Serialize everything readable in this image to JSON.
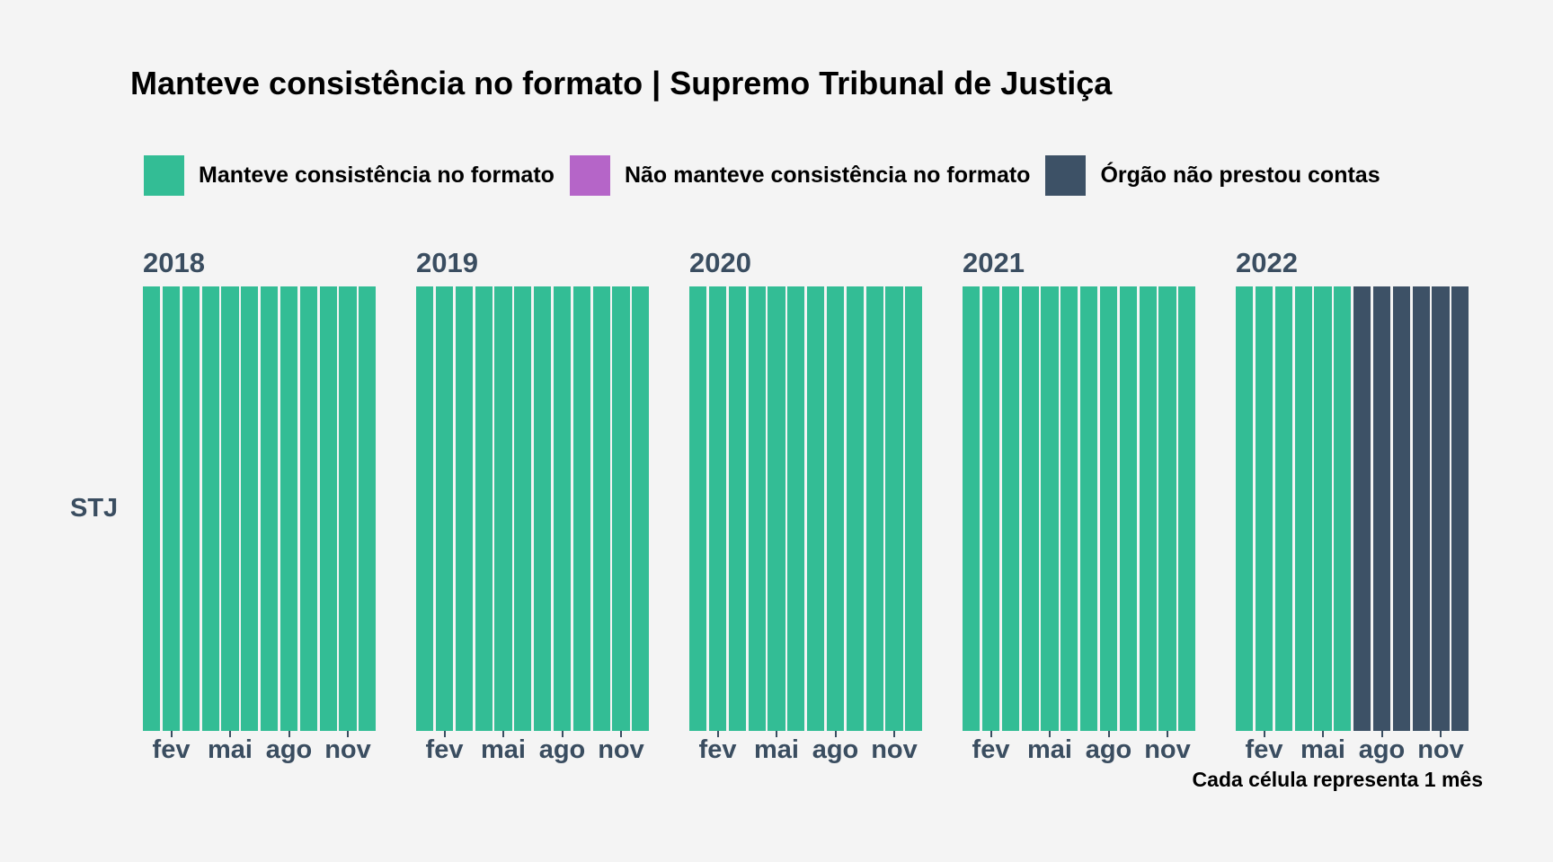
{
  "title": "Manteve consistência no formato | Supremo Tribunal de Justiça",
  "legend": [
    {
      "label": "Manteve consistência no formato",
      "color": "#33bd95"
    },
    {
      "label": "Não manteve consistência no formato",
      "color": "#b565c8"
    },
    {
      "label": "Órgão não prestou contas",
      "color": "#3d5166"
    }
  ],
  "caption": "Cada célula representa 1 mês",
  "chart_data": {
    "type": "heatmap",
    "title": "Manteve consistência no formato | Supremo Tribunal de Justiça",
    "row_label": "STJ",
    "x_tick_labels": [
      "fev",
      "mai",
      "ago",
      "nov"
    ],
    "x_tick_months": [
      2,
      5,
      8,
      11
    ],
    "categories": [
      "Manteve consistência no formato",
      "Não manteve consistência no formato",
      "Órgão não prestou contas"
    ],
    "panels": [
      {
        "year": "2018",
        "months": [
          "Manteve consistência no formato",
          "Manteve consistência no formato",
          "Manteve consistência no formato",
          "Manteve consistência no formato",
          "Manteve consistência no formato",
          "Manteve consistência no formato",
          "Manteve consistência no formato",
          "Manteve consistência no formato",
          "Manteve consistência no formato",
          "Manteve consistência no formato",
          "Manteve consistência no formato",
          "Manteve consistência no formato"
        ]
      },
      {
        "year": "2019",
        "months": [
          "Manteve consistência no formato",
          "Manteve consistência no formato",
          "Manteve consistência no formato",
          "Manteve consistência no formato",
          "Manteve consistência no formato",
          "Manteve consistência no formato",
          "Manteve consistência no formato",
          "Manteve consistência no formato",
          "Manteve consistência no formato",
          "Manteve consistência no formato",
          "Manteve consistência no formato",
          "Manteve consistência no formato"
        ]
      },
      {
        "year": "2020",
        "months": [
          "Manteve consistência no formato",
          "Manteve consistência no formato",
          "Manteve consistência no formato",
          "Manteve consistência no formato",
          "Manteve consistência no formato",
          "Manteve consistência no formato",
          "Manteve consistência no formato",
          "Manteve consistência no formato",
          "Manteve consistência no formato",
          "Manteve consistência no formato",
          "Manteve consistência no formato",
          "Manteve consistência no formato"
        ]
      },
      {
        "year": "2021",
        "months": [
          "Manteve consistência no formato",
          "Manteve consistência no formato",
          "Manteve consistência no formato",
          "Manteve consistência no formato",
          "Manteve consistência no formato",
          "Manteve consistência no formato",
          "Manteve consistência no formato",
          "Manteve consistência no formato",
          "Manteve consistência no formato",
          "Manteve consistência no formato",
          "Manteve consistência no formato",
          "Manteve consistência no formato"
        ]
      },
      {
        "year": "2022",
        "months": [
          "Manteve consistência no formato",
          "Manteve consistência no formato",
          "Manteve consistência no formato",
          "Manteve consistência no formato",
          "Manteve consistência no formato",
          "Manteve consistência no formato",
          "Órgão não prestou contas",
          "Órgão não prestou contas",
          "Órgão não prestou contas",
          "Órgão não prestou contas",
          "Órgão não prestou contas",
          "Órgão não prestou contas"
        ]
      }
    ]
  }
}
